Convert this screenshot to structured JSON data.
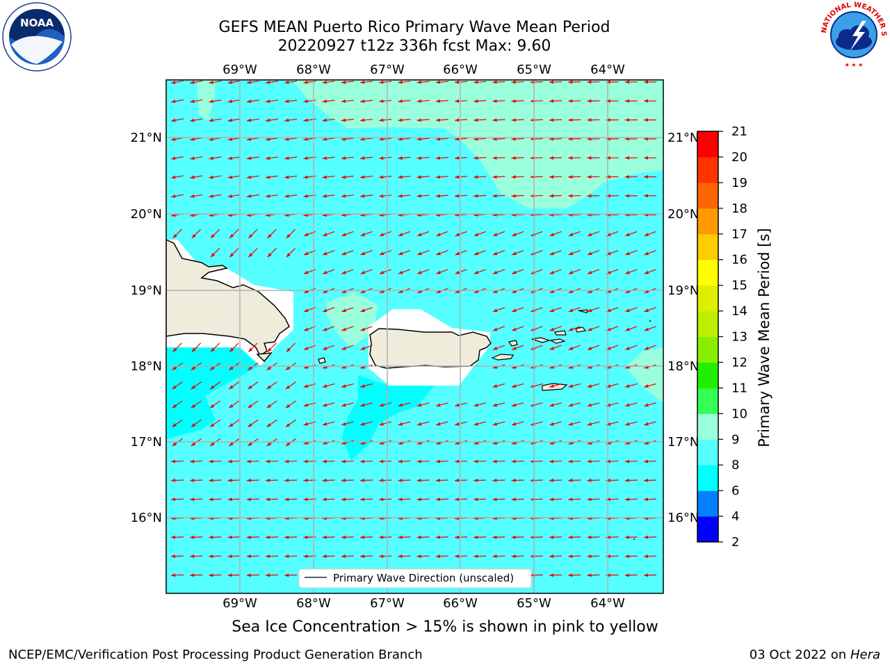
{
  "header": {
    "title_line1": "GEFS MEAN Puerto Rico Primary Wave Mean Period",
    "title_line2": "20220927 t12z 336h fcst   Max: 9.60"
  },
  "logos": {
    "noaa_text": "NOAA",
    "nws_text": "NATIONAL WEATHER SERVICE"
  },
  "map": {
    "lon_labels": [
      "69°W",
      "68°W",
      "67°W",
      "66°W",
      "65°W",
      "64°W"
    ],
    "lat_labels": [
      "21°N",
      "20°N",
      "19°N",
      "18°N",
      "17°N",
      "16°N"
    ],
    "legend_label": "Primary Wave Direction (unscaled)",
    "colors": {
      "ocean_8_9": "#55ffff",
      "ocean_6_8": "#00ffff",
      "ocean_9_10": "#99ffdd",
      "land": "#efecdc",
      "arrow": "#ee0000",
      "grid": "#b0b0b0"
    }
  },
  "colorbar": {
    "label": "Primary Wave Mean Period [s]",
    "ticks": [
      "2",
      "4",
      "6",
      "8",
      "9",
      "10",
      "11",
      "12",
      "13",
      "14",
      "15",
      "16",
      "17",
      "18",
      "19",
      "20",
      "21"
    ],
    "colors": [
      "#0000ff",
      "#0080ff",
      "#00ffff",
      "#55ffff",
      "#99ffdd",
      "#33ff55",
      "#22ee00",
      "#88ee00",
      "#bbee00",
      "#ddee00",
      "#ffff00",
      "#ffcc00",
      "#ff9900",
      "#ff6600",
      "#ff3300",
      "#ff0000"
    ]
  },
  "footer": {
    "sea_ice_note": "Sea Ice Concentration > 15% is shown in pink to yellow",
    "branch": "NCEP/EMC/Verification Post Processing Product Generation Branch",
    "date_prefix": "03 Oct 2022 on ",
    "machine": "Hera"
  }
}
